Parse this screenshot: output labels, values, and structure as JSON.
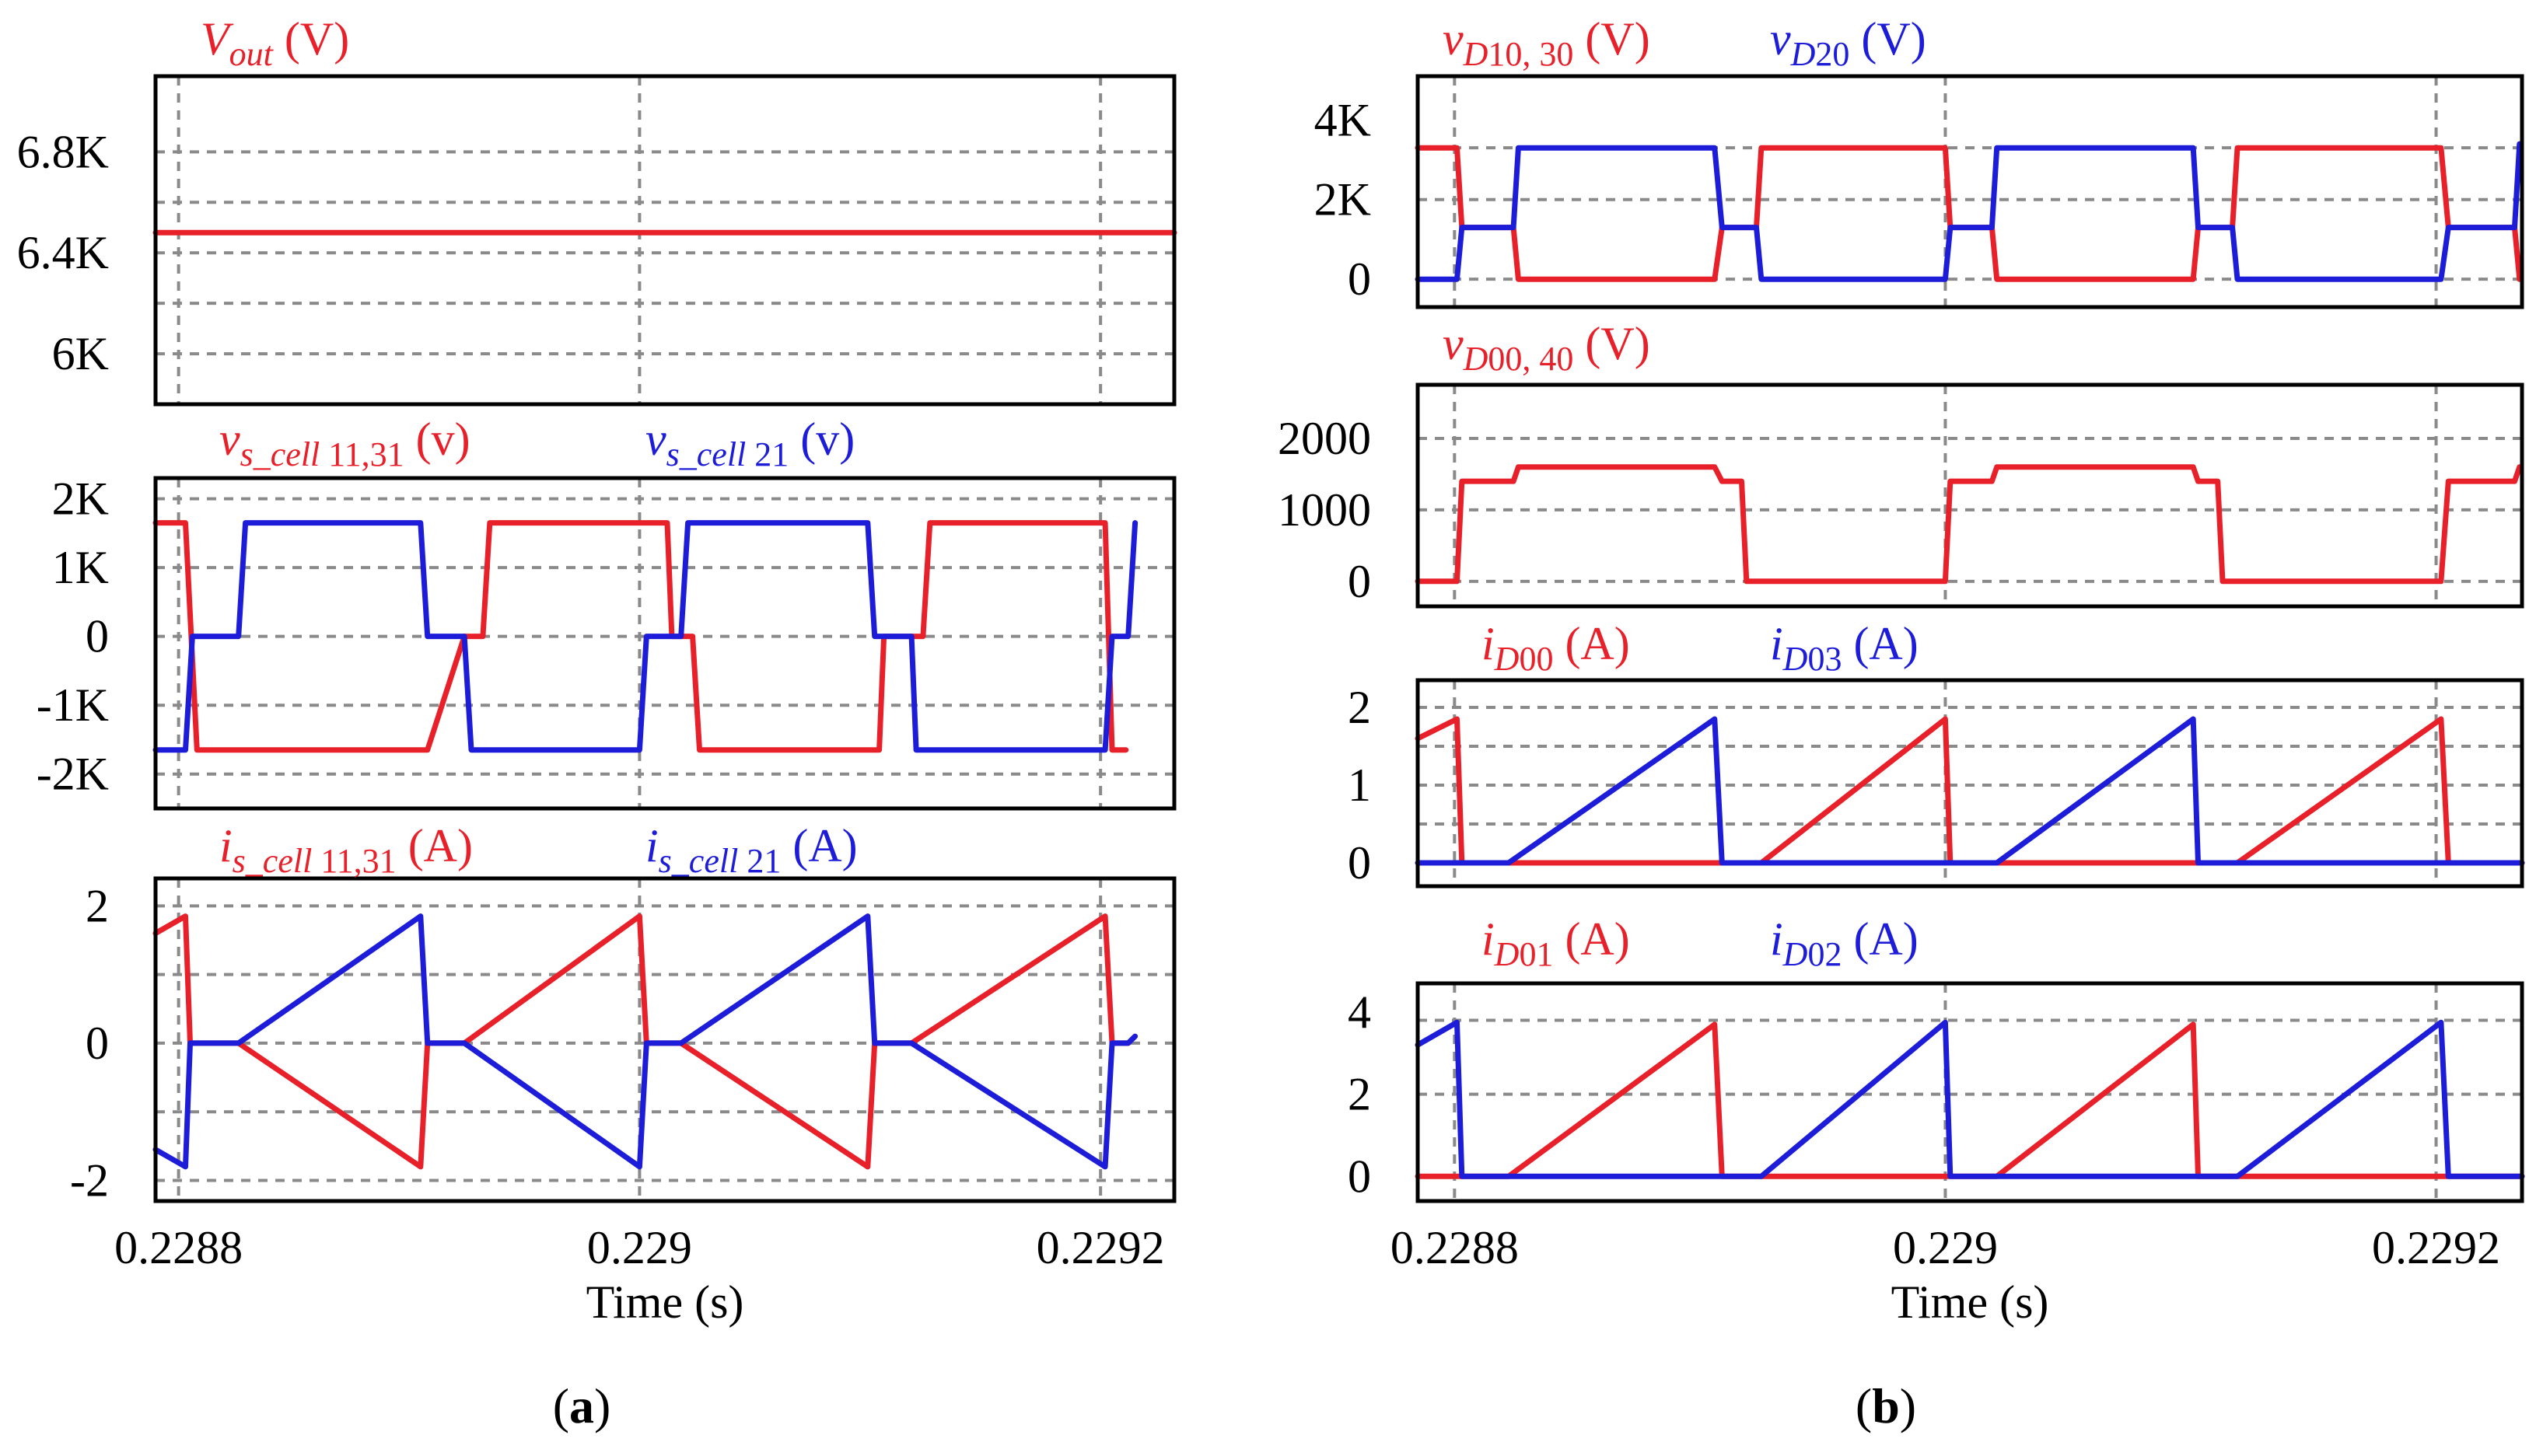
{
  "chart_data": [
    {
      "id": "a1",
      "panel": "a",
      "type": "line",
      "ylim": [
        5800,
        7100
      ],
      "xlim": [
        0.22879,
        0.229232
      ],
      "yticks": [
        {
          "v": 6800,
          "label": "6.8K"
        },
        {
          "v": 6400,
          "label": "6.4K"
        },
        {
          "v": 6000,
          "label": "6K"
        }
      ],
      "ygrid": [
        6800,
        6600,
        6400,
        6200,
        6000
      ],
      "labels": [
        {
          "text": "V_out (V)",
          "color": "red"
        }
      ],
      "series": [
        {
          "name": "Vout",
          "color": "red",
          "points": [
            [
              0.22879,
              6480
            ],
            [
              0.229232,
              6480
            ]
          ]
        }
      ]
    },
    {
      "id": "a2",
      "panel": "a",
      "type": "line",
      "ylim": [
        -2500,
        2300
      ],
      "xlim": [
        0.22879,
        0.229232
      ],
      "yticks": [
        {
          "v": 2000,
          "label": "2K"
        },
        {
          "v": 1000,
          "label": "1K"
        },
        {
          "v": 0,
          "label": "0"
        },
        {
          "v": -1000,
          "label": "-1K"
        },
        {
          "v": -2000,
          "label": "-2K"
        }
      ],
      "ygrid": [
        2000,
        1000,
        0,
        -1000,
        -2000
      ],
      "labels": [
        {
          "text": "v_s_cell 11,31 (v)",
          "color": "red"
        },
        {
          "text": "v_s_cell 21 (v)",
          "color": "blue"
        }
      ],
      "series": [
        {
          "name": "v_s_cell 11,31",
          "color": "red",
          "points": [
            [
              0.22879,
              1650
            ],
            [
              0.228803,
              1650
            ],
            [
              0.228808,
              -1650
            ],
            [
              0.228826,
              -1650
            ],
            [
              0.228829,
              -1650
            ],
            [
              0.228905,
              -1650
            ],
            [
              0.228908,
              -1650
            ],
            [
              0.228924,
              0
            ],
            [
              0.228932,
              0
            ],
            [
              0.228935,
              1650
            ],
            [
              0.229012,
              1650
            ],
            [
              0.229014,
              0
            ],
            [
              0.229023,
              0
            ],
            [
              0.229026,
              -1650
            ],
            [
              0.229104,
              -1650
            ],
            [
              0.229106,
              0
            ],
            [
              0.229123,
              0
            ],
            [
              0.229126,
              1650
            ],
            [
              0.229202,
              1650
            ],
            [
              0.229205,
              -1650
            ],
            [
              0.229211,
              -1650
            ]
          ]
        },
        {
          "name": "v_s_cell 21",
          "color": "blue",
          "points": [
            [
              0.22879,
              -1650
            ],
            [
              0.228803,
              -1650
            ],
            [
              0.228806,
              0
            ],
            [
              0.228826,
              0
            ],
            [
              0.228829,
              1650
            ],
            [
              0.228905,
              1650
            ],
            [
              0.228908,
              0
            ],
            [
              0.228924,
              0
            ],
            [
              0.228927,
              -1650
            ],
            [
              0.229,
              -1650
            ],
            [
              0.229003,
              0
            ],
            [
              0.229018,
              0
            ],
            [
              0.229021,
              1650
            ],
            [
              0.229099,
              1650
            ],
            [
              0.229102,
              0
            ],
            [
              0.229118,
              0
            ],
            [
              0.22912,
              -1650
            ],
            [
              0.229202,
              -1650
            ],
            [
              0.229205,
              0
            ],
            [
              0.229212,
              0
            ],
            [
              0.229215,
              1650
            ]
          ]
        }
      ]
    },
    {
      "id": "a3",
      "panel": "a",
      "type": "line",
      "ylim": [
        -2.3,
        2.4
      ],
      "xlim": [
        0.22879,
        0.229232
      ],
      "yticks": [
        {
          "v": 2,
          "label": "2"
        },
        {
          "v": 0,
          "label": "0"
        },
        {
          "v": -2,
          "label": "-2"
        }
      ],
      "ygrid": [
        2,
        1,
        0,
        -1,
        -2
      ],
      "xticks": [
        {
          "v": 0.2288,
          "label": "0.2288"
        },
        {
          "v": 0.229,
          "label": "0.229"
        },
        {
          "v": 0.2292,
          "label": "0.2292"
        }
      ],
      "xlabel": "Time (s)",
      "labels": [
        {
          "text": "i_s_cell 11,31 (A)",
          "color": "red"
        },
        {
          "text": "i_s_cell 21 (A)",
          "color": "blue"
        }
      ],
      "series": [
        {
          "name": "i_s_cell 11,31",
          "color": "red",
          "points": [
            [
              0.22879,
              1.6
            ],
            [
              0.228803,
              1.85
            ],
            [
              0.228805,
              0
            ],
            [
              0.228826,
              0
            ],
            [
              0.228905,
              -1.8
            ],
            [
              0.228908,
              0
            ],
            [
              0.228924,
              0
            ],
            [
              0.229,
              1.85
            ],
            [
              0.229003,
              0
            ],
            [
              0.229018,
              0
            ],
            [
              0.229099,
              -1.8
            ],
            [
              0.229102,
              0
            ],
            [
              0.229118,
              0
            ],
            [
              0.229202,
              1.85
            ],
            [
              0.229205,
              0
            ],
            [
              0.229212,
              0
            ]
          ]
        },
        {
          "name": "i_s_cell 21",
          "color": "blue",
          "points": [
            [
              0.22879,
              -1.55
            ],
            [
              0.228803,
              -1.8
            ],
            [
              0.228805,
              0
            ],
            [
              0.228826,
              0
            ],
            [
              0.228905,
              1.85
            ],
            [
              0.228908,
              0
            ],
            [
              0.228924,
              0
            ],
            [
              0.229,
              -1.8
            ],
            [
              0.229003,
              0
            ],
            [
              0.229018,
              0
            ],
            [
              0.229099,
              1.85
            ],
            [
              0.229102,
              0
            ],
            [
              0.229118,
              0
            ],
            [
              0.229202,
              -1.8
            ],
            [
              0.229205,
              0
            ],
            [
              0.229212,
              0
            ],
            [
              0.229215,
              0.1
            ]
          ]
        }
      ]
    },
    {
      "id": "b1",
      "panel": "b",
      "type": "line",
      "ylim": [
        -700,
        5100
      ],
      "xlim": [
        0.228785,
        0.229235
      ],
      "yticks": [
        {
          "v": 4000,
          "label": "4K"
        },
        {
          "v": 2000,
          "label": "2K"
        },
        {
          "v": 0,
          "label": "0"
        }
      ],
      "ygrid": [
        3300,
        2000,
        0
      ],
      "labels": [
        {
          "text": "v_D10, 30 (V)",
          "color": "red"
        },
        {
          "text": "v_D20 (V)",
          "color": "blue"
        }
      ],
      "series": [
        {
          "name": "v_D10, 30",
          "color": "red",
          "points": [
            [
              0.228785,
              3300
            ],
            [
              0.228801,
              3300
            ],
            [
              0.228803,
              1300
            ],
            [
              0.228824,
              1300
            ],
            [
              0.228826,
              0
            ],
            [
              0.228906,
              0
            ],
            [
              0.228909,
              1300
            ],
            [
              0.228923,
              1300
            ],
            [
              0.228925,
              3300
            ],
            [
              0.229,
              3300
            ],
            [
              0.229002,
              1300
            ],
            [
              0.229019,
              1300
            ],
            [
              0.229021,
              0
            ],
            [
              0.229101,
              0
            ],
            [
              0.229103,
              1300
            ],
            [
              0.229117,
              1300
            ],
            [
              0.229119,
              3300
            ],
            [
              0.229202,
              3300
            ],
            [
              0.229205,
              1300
            ],
            [
              0.229232,
              1300
            ],
            [
              0.229234,
              0
            ]
          ]
        },
        {
          "name": "v_D20",
          "color": "blue",
          "points": [
            [
              0.228785,
              0
            ],
            [
              0.228801,
              0
            ],
            [
              0.228803,
              1300
            ],
            [
              0.228824,
              1300
            ],
            [
              0.228826,
              3300
            ],
            [
              0.228906,
              3300
            ],
            [
              0.228909,
              1300
            ],
            [
              0.228923,
              1300
            ],
            [
              0.228925,
              0
            ],
            [
              0.229,
              0
            ],
            [
              0.229002,
              1300
            ],
            [
              0.229019,
              1300
            ],
            [
              0.229021,
              3300
            ],
            [
              0.229101,
              3300
            ],
            [
              0.229103,
              1300
            ],
            [
              0.229117,
              1300
            ],
            [
              0.229119,
              0
            ],
            [
              0.229202,
              0
            ],
            [
              0.229205,
              1300
            ],
            [
              0.229232,
              1300
            ],
            [
              0.229234,
              3400
            ]
          ]
        }
      ]
    },
    {
      "id": "b2",
      "panel": "b",
      "type": "line",
      "ylim": [
        -350,
        2750
      ],
      "xlim": [
        0.228785,
        0.229235
      ],
      "yticks": [
        {
          "v": 2000,
          "label": "2000"
        },
        {
          "v": 1000,
          "label": "1000"
        },
        {
          "v": 0,
          "label": "0"
        }
      ],
      "ygrid": [
        2000,
        1000,
        0
      ],
      "labels": [
        {
          "text": "v_D00, 40 (V)",
          "color": "red"
        }
      ],
      "series": [
        {
          "name": "v_D00, 40",
          "color": "red",
          "points": [
            [
              0.228785,
              0
            ],
            [
              0.228801,
              0
            ],
            [
              0.228803,
              1400
            ],
            [
              0.228824,
              1400
            ],
            [
              0.228826,
              1600
            ],
            [
              0.228906,
              1600
            ],
            [
              0.228909,
              1400
            ],
            [
              0.228917,
              1400
            ],
            [
              0.228919,
              0
            ],
            [
              0.229,
              0
            ],
            [
              0.229002,
              1400
            ],
            [
              0.229019,
              1400
            ],
            [
              0.229021,
              1600
            ],
            [
              0.229101,
              1600
            ],
            [
              0.229103,
              1400
            ],
            [
              0.229111,
              1400
            ],
            [
              0.229113,
              0
            ],
            [
              0.229202,
              0
            ],
            [
              0.229205,
              1400
            ],
            [
              0.229232,
              1400
            ],
            [
              0.229234,
              1600
            ]
          ]
        }
      ]
    },
    {
      "id": "b3",
      "panel": "b",
      "type": "line",
      "ylim": [
        -0.3,
        2.35
      ],
      "xlim": [
        0.228785,
        0.229235
      ],
      "yticks": [
        {
          "v": 2,
          "label": "2"
        },
        {
          "v": 1,
          "label": "1"
        },
        {
          "v": 0,
          "label": "0"
        }
      ],
      "ygrid": [
        2,
        1.5,
        1,
        0.5,
        0
      ],
      "labels": [
        {
          "text": "i_D00 (A)",
          "color": "red"
        },
        {
          "text": "i_D03 (A)",
          "color": "blue"
        }
      ],
      "series": [
        {
          "name": "i_D00",
          "color": "red",
          "points": [
            [
              0.228785,
              1.6
            ],
            [
              0.228801,
              1.85
            ],
            [
              0.228803,
              0
            ],
            [
              0.228925,
              0
            ],
            [
              0.229,
              1.85
            ],
            [
              0.229002,
              0
            ],
            [
              0.229119,
              0
            ],
            [
              0.229202,
              1.85
            ],
            [
              0.229205,
              0
            ],
            [
              0.229235,
              0
            ]
          ]
        },
        {
          "name": "i_D03",
          "color": "blue",
          "points": [
            [
              0.228785,
              0
            ],
            [
              0.228822,
              0
            ],
            [
              0.228906,
              1.85
            ],
            [
              0.228909,
              0
            ],
            [
              0.229021,
              0
            ],
            [
              0.229101,
              1.85
            ],
            [
              0.229103,
              0
            ],
            [
              0.229235,
              0
            ]
          ]
        }
      ]
    },
    {
      "id": "b4",
      "panel": "b",
      "type": "line",
      "ylim": [
        -0.6,
        4.7
      ],
      "xlim": [
        0.228785,
        0.229235
      ],
      "yticks": [
        {
          "v": 4,
          "label": "4"
        },
        {
          "v": 2,
          "label": "2"
        },
        {
          "v": 0,
          "label": "0"
        }
      ],
      "ygrid": [
        3.8,
        2,
        0
      ],
      "xticks": [
        {
          "v": 0.2288,
          "label": "0.2288"
        },
        {
          "v": 0.229,
          "label": "0.229"
        },
        {
          "v": 0.2292,
          "label": "0.2292"
        }
      ],
      "xlabel": "Time (s)",
      "labels": [
        {
          "text": "i_D01 (A)",
          "color": "red"
        },
        {
          "text": "i_D02 (A)",
          "color": "blue"
        }
      ],
      "series": [
        {
          "name": "i_D01",
          "color": "red",
          "points": [
            [
              0.228785,
              0
            ],
            [
              0.228822,
              0
            ],
            [
              0.228906,
              3.7
            ],
            [
              0.228909,
              0
            ],
            [
              0.229021,
              0
            ],
            [
              0.229101,
              3.7
            ],
            [
              0.229103,
              0
            ],
            [
              0.229235,
              0
            ]
          ]
        },
        {
          "name": "i_D02",
          "color": "blue",
          "points": [
            [
              0.228785,
              3.2
            ],
            [
              0.228801,
              3.75
            ],
            [
              0.228803,
              0
            ],
            [
              0.228925,
              0
            ],
            [
              0.229,
              3.75
            ],
            [
              0.229002,
              0
            ],
            [
              0.229119,
              0
            ],
            [
              0.229202,
              3.75
            ],
            [
              0.229205,
              0
            ],
            [
              0.229235,
              0
            ]
          ]
        }
      ]
    }
  ],
  "captions": {
    "a": "(a)",
    "b": "(b)"
  },
  "colors": {
    "red": "#e8202a",
    "blue": "#1c1cd9",
    "grid": "#8a8a8a"
  }
}
